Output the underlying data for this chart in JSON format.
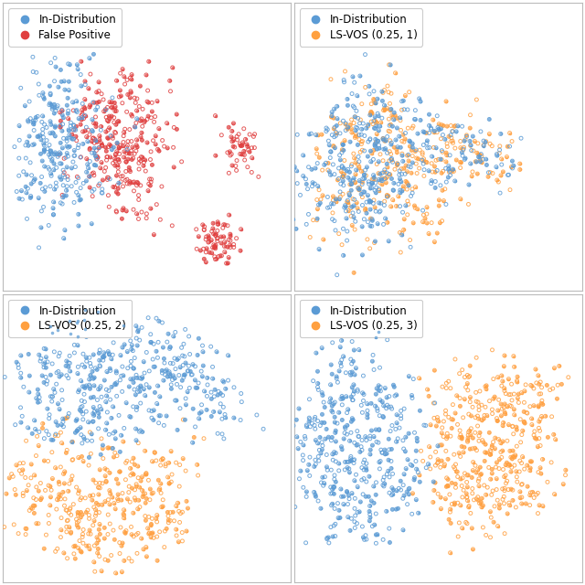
{
  "fig_size": [
    6.4,
    6.4
  ],
  "dpi": 100,
  "background_color": "#ffffff",
  "border_color": "#bbbbbb",
  "marker_size_open": 8,
  "marker_size_filled": 5,
  "lw_open": 0.7,
  "alpha_open": 0.85,
  "alpha_filled": 0.7,
  "legend_fontsize": 8.5,
  "ec_in": "#5B9BD5",
  "ec_fp": "#E04040",
  "ec_or": "#FFA040",
  "subplots": [
    {
      "label2": "False Positive"
    },
    {
      "label2": "LS-VOS (0.25, 1)"
    },
    {
      "label2": "LS-VOS (0.25, 2)"
    },
    {
      "label2": "LS-VOS (0.25, 3)"
    }
  ]
}
